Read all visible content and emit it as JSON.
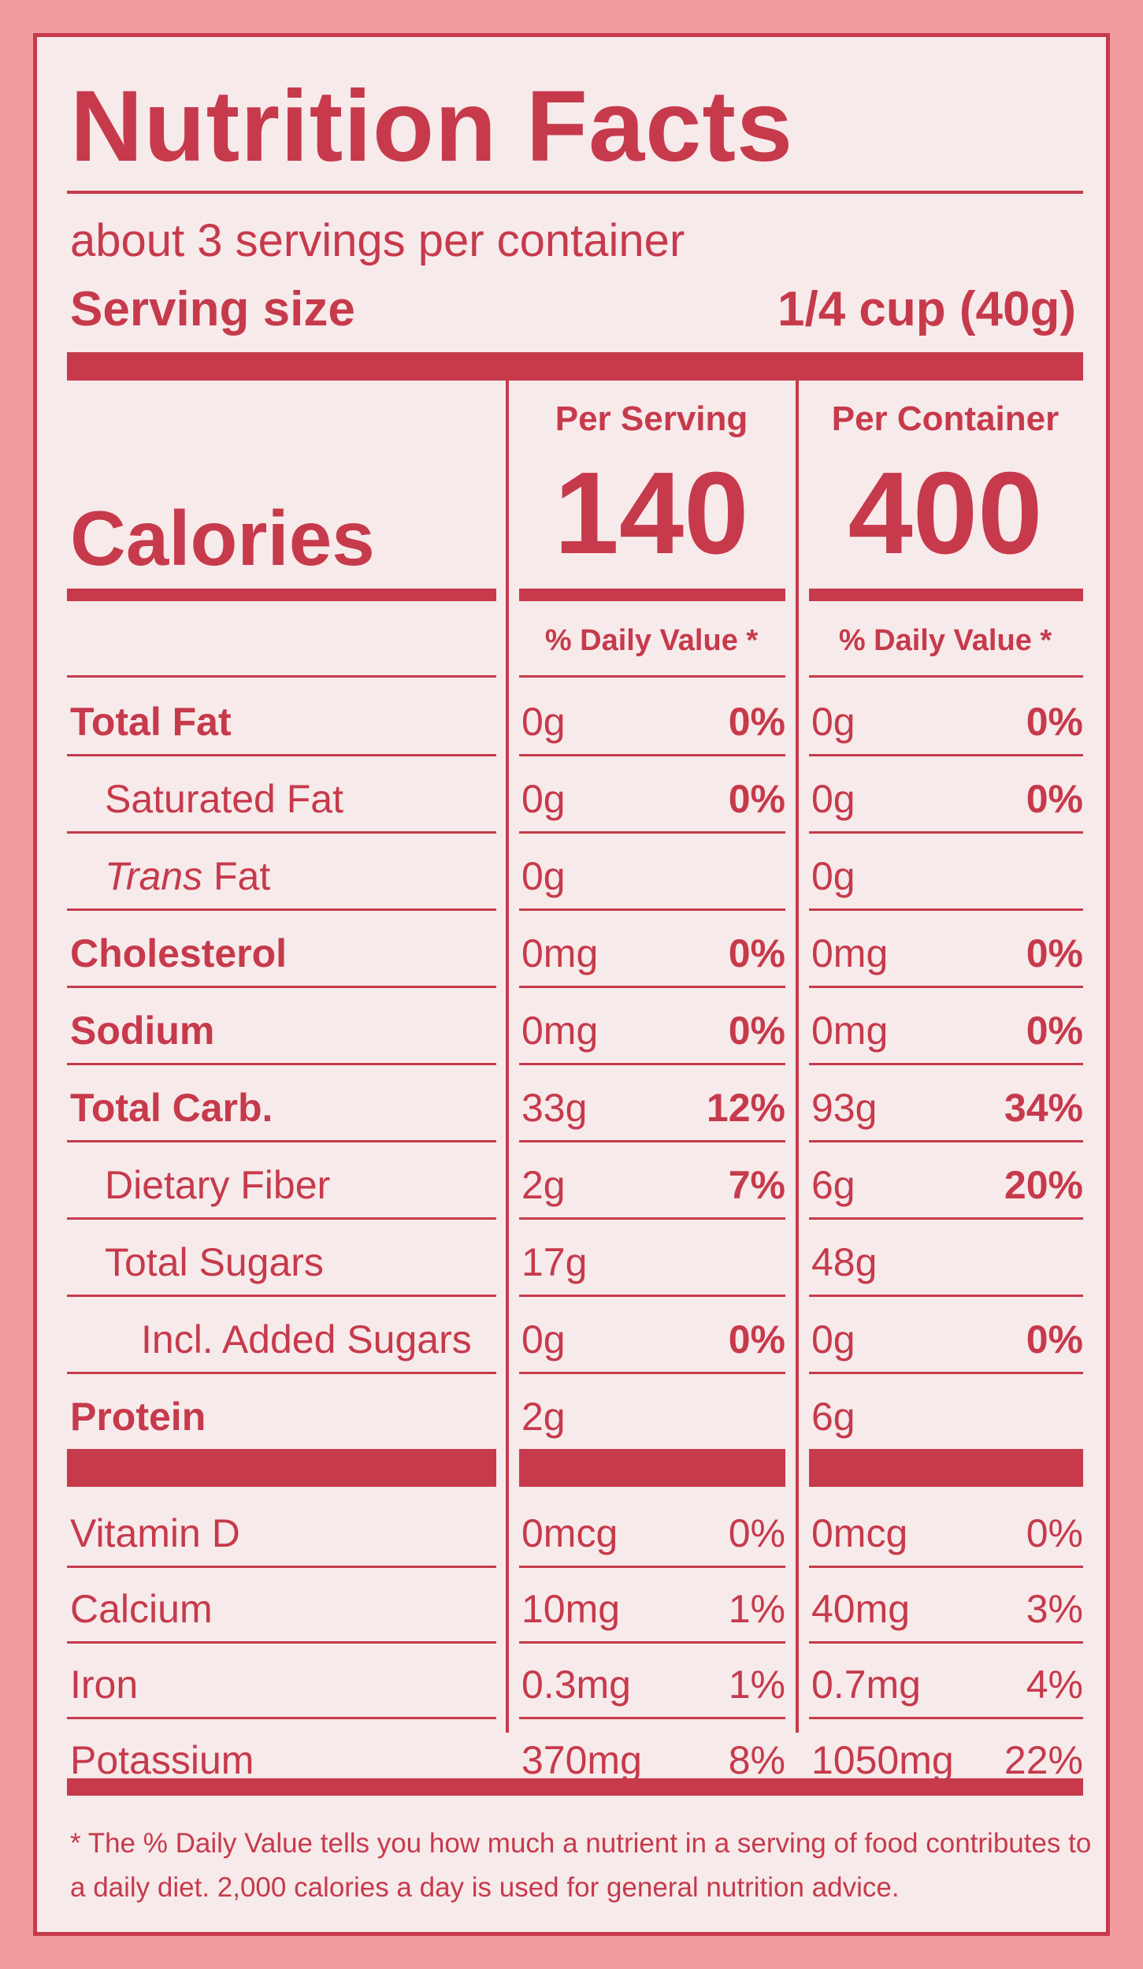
{
  "title": "Nutrition Facts",
  "servings_per_container": "about 3 servings per container",
  "serving_size_label": "Serving size",
  "serving_size_value": "1/4 cup (40g)",
  "columns": {
    "per_serving_label": "Per Serving",
    "per_container_label": "Per Container",
    "daily_value_label": "% Daily Value *"
  },
  "calories": {
    "label": "Calories",
    "per_serving": "140",
    "per_container": "400"
  },
  "nutrients": [
    {
      "name": "Total Fat",
      "serving_amount": "0g",
      "serving_dv": "0%",
      "container_amount": "0g",
      "container_dv": "0%"
    },
    {
      "name": "Saturated Fat",
      "serving_amount": "0g",
      "serving_dv": "0%",
      "container_amount": "0g",
      "container_dv": "0%"
    },
    {
      "name_italic": "Trans",
      "name": "Fat",
      "serving_amount": "0g",
      "serving_dv": "",
      "container_amount": "0g",
      "container_dv": ""
    },
    {
      "name": "Cholesterol",
      "serving_amount": "0mg",
      "serving_dv": "0%",
      "container_amount": "0mg",
      "container_dv": "0%"
    },
    {
      "name": "Sodium",
      "serving_amount": "0mg",
      "serving_dv": "0%",
      "container_amount": "0mg",
      "container_dv": "0%"
    },
    {
      "name": "Total Carb.",
      "serving_amount": "33g",
      "serving_dv": "12%",
      "container_amount": "93g",
      "container_dv": "34%"
    },
    {
      "name": "Dietary Fiber",
      "serving_amount": "2g",
      "serving_dv": "7%",
      "container_amount": "6g",
      "container_dv": "20%"
    },
    {
      "name": "Total Sugars",
      "serving_amount": "17g",
      "serving_dv": "",
      "container_amount": "48g",
      "container_dv": ""
    },
    {
      "name": "Incl. Added Sugars",
      "serving_amount": "0g",
      "serving_dv": "0%",
      "container_amount": "0g",
      "container_dv": "0%"
    },
    {
      "name": "Protein",
      "serving_amount": "2g",
      "serving_dv": "",
      "container_amount": "6g",
      "container_dv": ""
    }
  ],
  "vitamins": [
    {
      "name": "Vitamin D",
      "serving_amount": "0mcg",
      "serving_dv": "0%",
      "container_amount": "0mcg",
      "container_dv": "0%"
    },
    {
      "name": "Calcium",
      "serving_amount": "10mg",
      "serving_dv": "1%",
      "container_amount": "40mg",
      "container_dv": "3%"
    },
    {
      "name": "Iron",
      "serving_amount": "0.3mg",
      "serving_dv": "1%",
      "container_amount": "0.7mg",
      "container_dv": "4%"
    },
    {
      "name": "Potassium",
      "serving_amount": "370mg",
      "serving_dv": "8%",
      "container_amount": "1050mg",
      "container_dv": "22%"
    }
  ],
  "footnote": "* The % Daily Value tells you how much a nutrient in a serving of food contributes to a daily diet. 2,000 calories a day is used for general nutrition advice.",
  "colors": {
    "ink": "#c63a4c",
    "panel": "#f7eaea",
    "outer": "#f29ca0"
  }
}
